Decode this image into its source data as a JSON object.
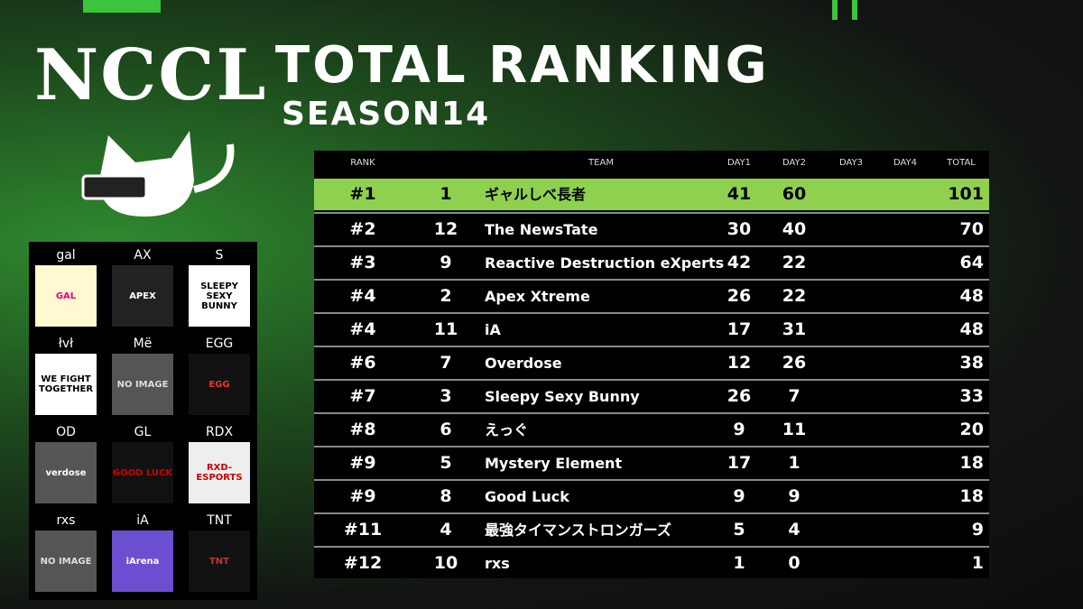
{
  "header": {
    "logo": "NCCL",
    "title": "TOTAL RANKING",
    "subtitle": "SEASON14"
  },
  "table": {
    "columns": {
      "rank": "RANK",
      "team": "TEAM",
      "day1": "DAY1",
      "day2": "DAY2",
      "day3": "DAY3",
      "day4": "DAY4",
      "total": "TOTAL"
    },
    "rows": [
      {
        "rank": "#1",
        "no": 1,
        "team": "ギャルしべ長者",
        "day1": 41,
        "day2": 60,
        "total": 101
      },
      {
        "rank": "#2",
        "no": 12,
        "team": "The NewsTate",
        "day1": 30,
        "day2": 40,
        "total": 70
      },
      {
        "rank": "#3",
        "no": 9,
        "team": "Reactive Destruction eXperts",
        "day1": 42,
        "day2": 22,
        "total": 64
      },
      {
        "rank": "#4",
        "no": 2,
        "team": "Apex Xtreme",
        "day1": 26,
        "day2": 22,
        "total": 48
      },
      {
        "rank": "#4",
        "no": 11,
        "team": "iA",
        "day1": 17,
        "day2": 31,
        "total": 48
      },
      {
        "rank": "#6",
        "no": 7,
        "team": "Overdose",
        "day1": 12,
        "day2": 26,
        "total": 38
      },
      {
        "rank": "#7",
        "no": 3,
        "team": "Sleepy Sexy Bunny",
        "day1": 26,
        "day2": 7,
        "total": 33
      },
      {
        "rank": "#8",
        "no": 6,
        "team": "えっぐ",
        "day1": 9,
        "day2": 11,
        "total": 20
      },
      {
        "rank": "#9",
        "no": 5,
        "team": "Mystery Element",
        "day1": 17,
        "day2": 1,
        "total": 18
      },
      {
        "rank": "#9",
        "no": 8,
        "team": "Good Luck",
        "day1": 9,
        "day2": 9,
        "total": 18
      },
      {
        "rank": "#11",
        "no": 4,
        "team": "最強タイマンストロンガーズ",
        "day1": 5,
        "day2": 4,
        "total": 9
      },
      {
        "rank": "#12",
        "no": 10,
        "team": "rxs",
        "day1": 1,
        "day2": 0,
        "total": 1
      }
    ]
  },
  "logos": [
    {
      "label": "gal",
      "image_text": "GAL"
    },
    {
      "label": "AX",
      "image_text": "APEX"
    },
    {
      "label": "S",
      "image_text": "SLEEPY SEXY BUNNY"
    },
    {
      "label": "łvł",
      "image_text": "WE FIGHT TOGETHER"
    },
    {
      "label": "Më",
      "image_text": "NO IMAGE"
    },
    {
      "label": "EGG",
      "image_text": "EGG"
    },
    {
      "label": "OD",
      "image_text": "verdose"
    },
    {
      "label": "GL",
      "image_text": "GOOD LUCK"
    },
    {
      "label": "RDX",
      "image_text": "RXD-ESPORTS"
    },
    {
      "label": "rxs",
      "image_text": "NO IMAGE"
    },
    {
      "label": "iA",
      "image_text": "iArena"
    },
    {
      "label": "TNT",
      "image_text": "TNT"
    }
  ]
}
